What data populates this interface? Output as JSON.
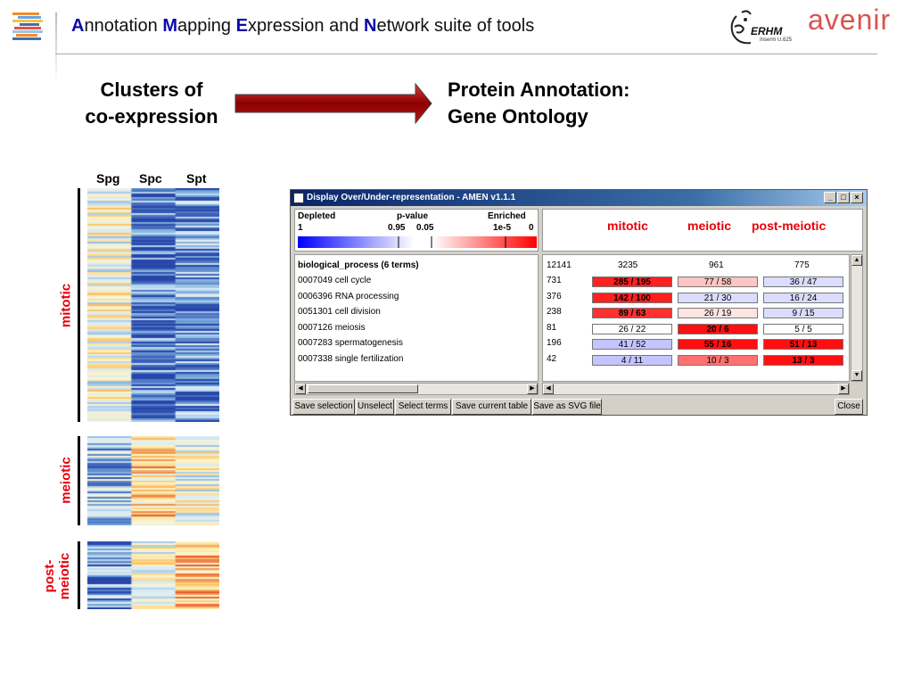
{
  "header": {
    "title_parts": [
      {
        "accent": "A",
        "rest": "nnotation "
      },
      {
        "accent": "M",
        "rest": "apping "
      },
      {
        "accent": "E",
        "rest": "xpression and "
      },
      {
        "accent": "N",
        "rest": "etwork suite of tools"
      }
    ],
    "erhm_logo_text": "ERHM",
    "erhm_logo_sub": "Inserm U.625",
    "avenir_logo_text": "avenir"
  },
  "headings": {
    "clusters_line1": "Clusters of",
    "clusters_line2": "co-expression",
    "protein_line1": "Protein Annotation:",
    "protein_line2": "Gene Ontology"
  },
  "heatmap": {
    "columns": [
      "Spg",
      "Spc",
      "Spt"
    ],
    "clusters": [
      {
        "label": "mitotic"
      },
      {
        "label": "meiotic"
      },
      {
        "label_line1": "post-",
        "label_line2": "meiotic"
      }
    ]
  },
  "window": {
    "title": "Display Over/Under-representation - AMEN v1.1.1",
    "controls": {
      "minimize": "_",
      "maximize": "□",
      "close": "×"
    },
    "legend": {
      "depleted": "Depleted",
      "pvalue": "p-value",
      "enriched": "Enriched",
      "tick_1": "1",
      "tick_095": "0.95",
      "tick_005": "0.05",
      "tick_1e5": "1e-5",
      "tick_0": "0"
    },
    "column_heads": [
      "mitotic",
      "meiotic",
      "post-meiotic"
    ],
    "terms_header": "biological_process (6 terms)",
    "totals": {
      "all": "12141",
      "mitotic": "3235",
      "meiotic": "961",
      "post_meiotic": "775"
    },
    "terms": [
      {
        "term": "0007049 cell cycle",
        "n": "731",
        "cells": [
          {
            "v": "285 / 195",
            "bg": "#ff2020",
            "bold": true
          },
          {
            "v": "77 / 58",
            "bg": "#ffc4c4",
            "bold": false
          },
          {
            "v": "36 / 47",
            "bg": "#dcdcff",
            "bold": false
          }
        ]
      },
      {
        "term": "0006396 RNA processing",
        "n": "376",
        "cells": [
          {
            "v": "142 / 100",
            "bg": "#ff2020",
            "bold": true
          },
          {
            "v": "21 / 30",
            "bg": "#dcdcff",
            "bold": false
          },
          {
            "v": "16 / 24",
            "bg": "#dcdcff",
            "bold": false
          }
        ]
      },
      {
        "term": "0051301 cell division",
        "n": "238",
        "cells": [
          {
            "v": "89 / 63",
            "bg": "#ff3030",
            "bold": true
          },
          {
            "v": "26 / 19",
            "bg": "#ffe4e4",
            "bold": false
          },
          {
            "v": "9 / 15",
            "bg": "#dcdcff",
            "bold": false
          }
        ]
      },
      {
        "term": "0007126 meiosis",
        "n": "81",
        "cells": [
          {
            "v": "26 / 22",
            "bg": "#ffffff",
            "bold": false
          },
          {
            "v": "20 / 6",
            "bg": "#ff1010",
            "bold": true
          },
          {
            "v": "5 / 5",
            "bg": "#ffffff",
            "bold": false
          }
        ]
      },
      {
        "term": "0007283 spermatogenesis",
        "n": "196",
        "cells": [
          {
            "v": "41 / 52",
            "bg": "#c4c4ff",
            "bold": false
          },
          {
            "v": "55 / 16",
            "bg": "#ff1010",
            "bold": true
          },
          {
            "v": "51 / 13",
            "bg": "#ff1010",
            "bold": true
          }
        ]
      },
      {
        "term": "0007338 single fertilization",
        "n": "42",
        "cells": [
          {
            "v": "4 / 11",
            "bg": "#c4c4ff",
            "bold": false
          },
          {
            "v": "10 / 3",
            "bg": "#ff7070",
            "bold": false
          },
          {
            "v": "13 / 3",
            "bg": "#ff1010",
            "bold": true
          }
        ]
      }
    ],
    "buttons": {
      "save_selection": "Save selection",
      "unselect": "Unselect",
      "select_terms": "Select terms",
      "save_current_table": "Save current table",
      "save_svg": "Save as SVG file",
      "close": "Close"
    }
  },
  "colors": {
    "accent_blue": "#0a0aa8",
    "cluster_label_red": "#e8000b",
    "arrow_red": "#b00000",
    "titlebar": "#0a246a"
  }
}
